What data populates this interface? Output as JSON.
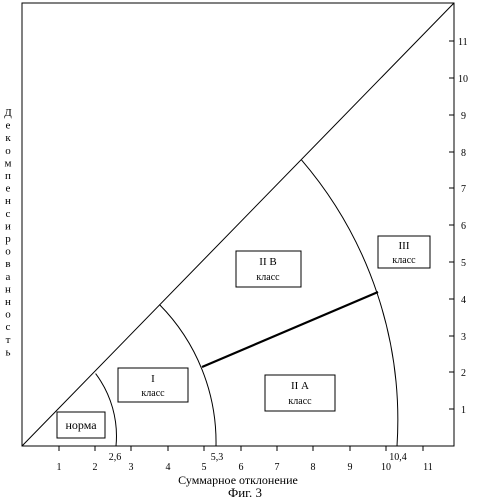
{
  "x_axis": {
    "label": "Суммарное отклонение",
    "ticks": [
      "1",
      "2",
      "3",
      "4",
      "5",
      "6",
      "7",
      "8",
      "9",
      "10",
      "11"
    ],
    "special_ticks": [
      "2,6",
      "5,3",
      "10,4"
    ]
  },
  "y_axis": {
    "label": "Декомпенсированность",
    "ticks": [
      "1",
      "2",
      "3",
      "4",
      "5",
      "6",
      "7",
      "8",
      "9",
      "10",
      "11"
    ]
  },
  "figure_caption": "Фиг. 3",
  "zones": [
    {
      "id": "norma",
      "line1": "норма",
      "line2": ""
    },
    {
      "id": "class-1",
      "line1": "I",
      "line2": "класс"
    },
    {
      "id": "class-2b",
      "line1": "II В",
      "line2": "класс"
    },
    {
      "id": "class-2a",
      "line1": "II А",
      "line2": "класс"
    },
    {
      "id": "class-3",
      "line1": "III",
      "line2": "класс"
    }
  ]
}
